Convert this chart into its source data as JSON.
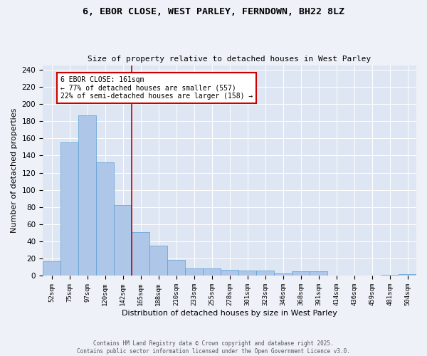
{
  "title1": "6, EBOR CLOSE, WEST PARLEY, FERNDOWN, BH22 8LZ",
  "title2": "Size of property relative to detached houses in West Parley",
  "xlabel": "Distribution of detached houses by size in West Parley",
  "ylabel": "Number of detached properties",
  "categories": [
    "52sqm",
    "75sqm",
    "97sqm",
    "120sqm",
    "142sqm",
    "165sqm",
    "188sqm",
    "210sqm",
    "233sqm",
    "255sqm",
    "278sqm",
    "301sqm",
    "323sqm",
    "346sqm",
    "368sqm",
    "391sqm",
    "414sqm",
    "436sqm",
    "459sqm",
    "481sqm",
    "504sqm"
  ],
  "values": [
    17,
    155,
    187,
    132,
    82,
    51,
    35,
    19,
    9,
    9,
    7,
    6,
    6,
    3,
    5,
    5,
    0,
    0,
    0,
    1,
    2
  ],
  "bar_color": "#aec6e8",
  "bar_edge_color": "#5a9fd4",
  "vline_color": "#cc0000",
  "annotation_text": "6 EBOR CLOSE: 161sqm\n← 77% of detached houses are smaller (557)\n22% of semi-detached houses are larger (158) →",
  "annotation_box_color": "#ffffff",
  "annotation_border_color": "#cc0000",
  "ylim": [
    0,
    245
  ],
  "yticks": [
    0,
    20,
    40,
    60,
    80,
    100,
    120,
    140,
    160,
    180,
    200,
    220,
    240
  ],
  "footer1": "Contains HM Land Registry data © Crown copyright and database right 2025.",
  "footer2": "Contains public sector information licensed under the Open Government Licence v3.0.",
  "bg_color": "#eef2f8",
  "plot_bg_color": "#dde6f2"
}
